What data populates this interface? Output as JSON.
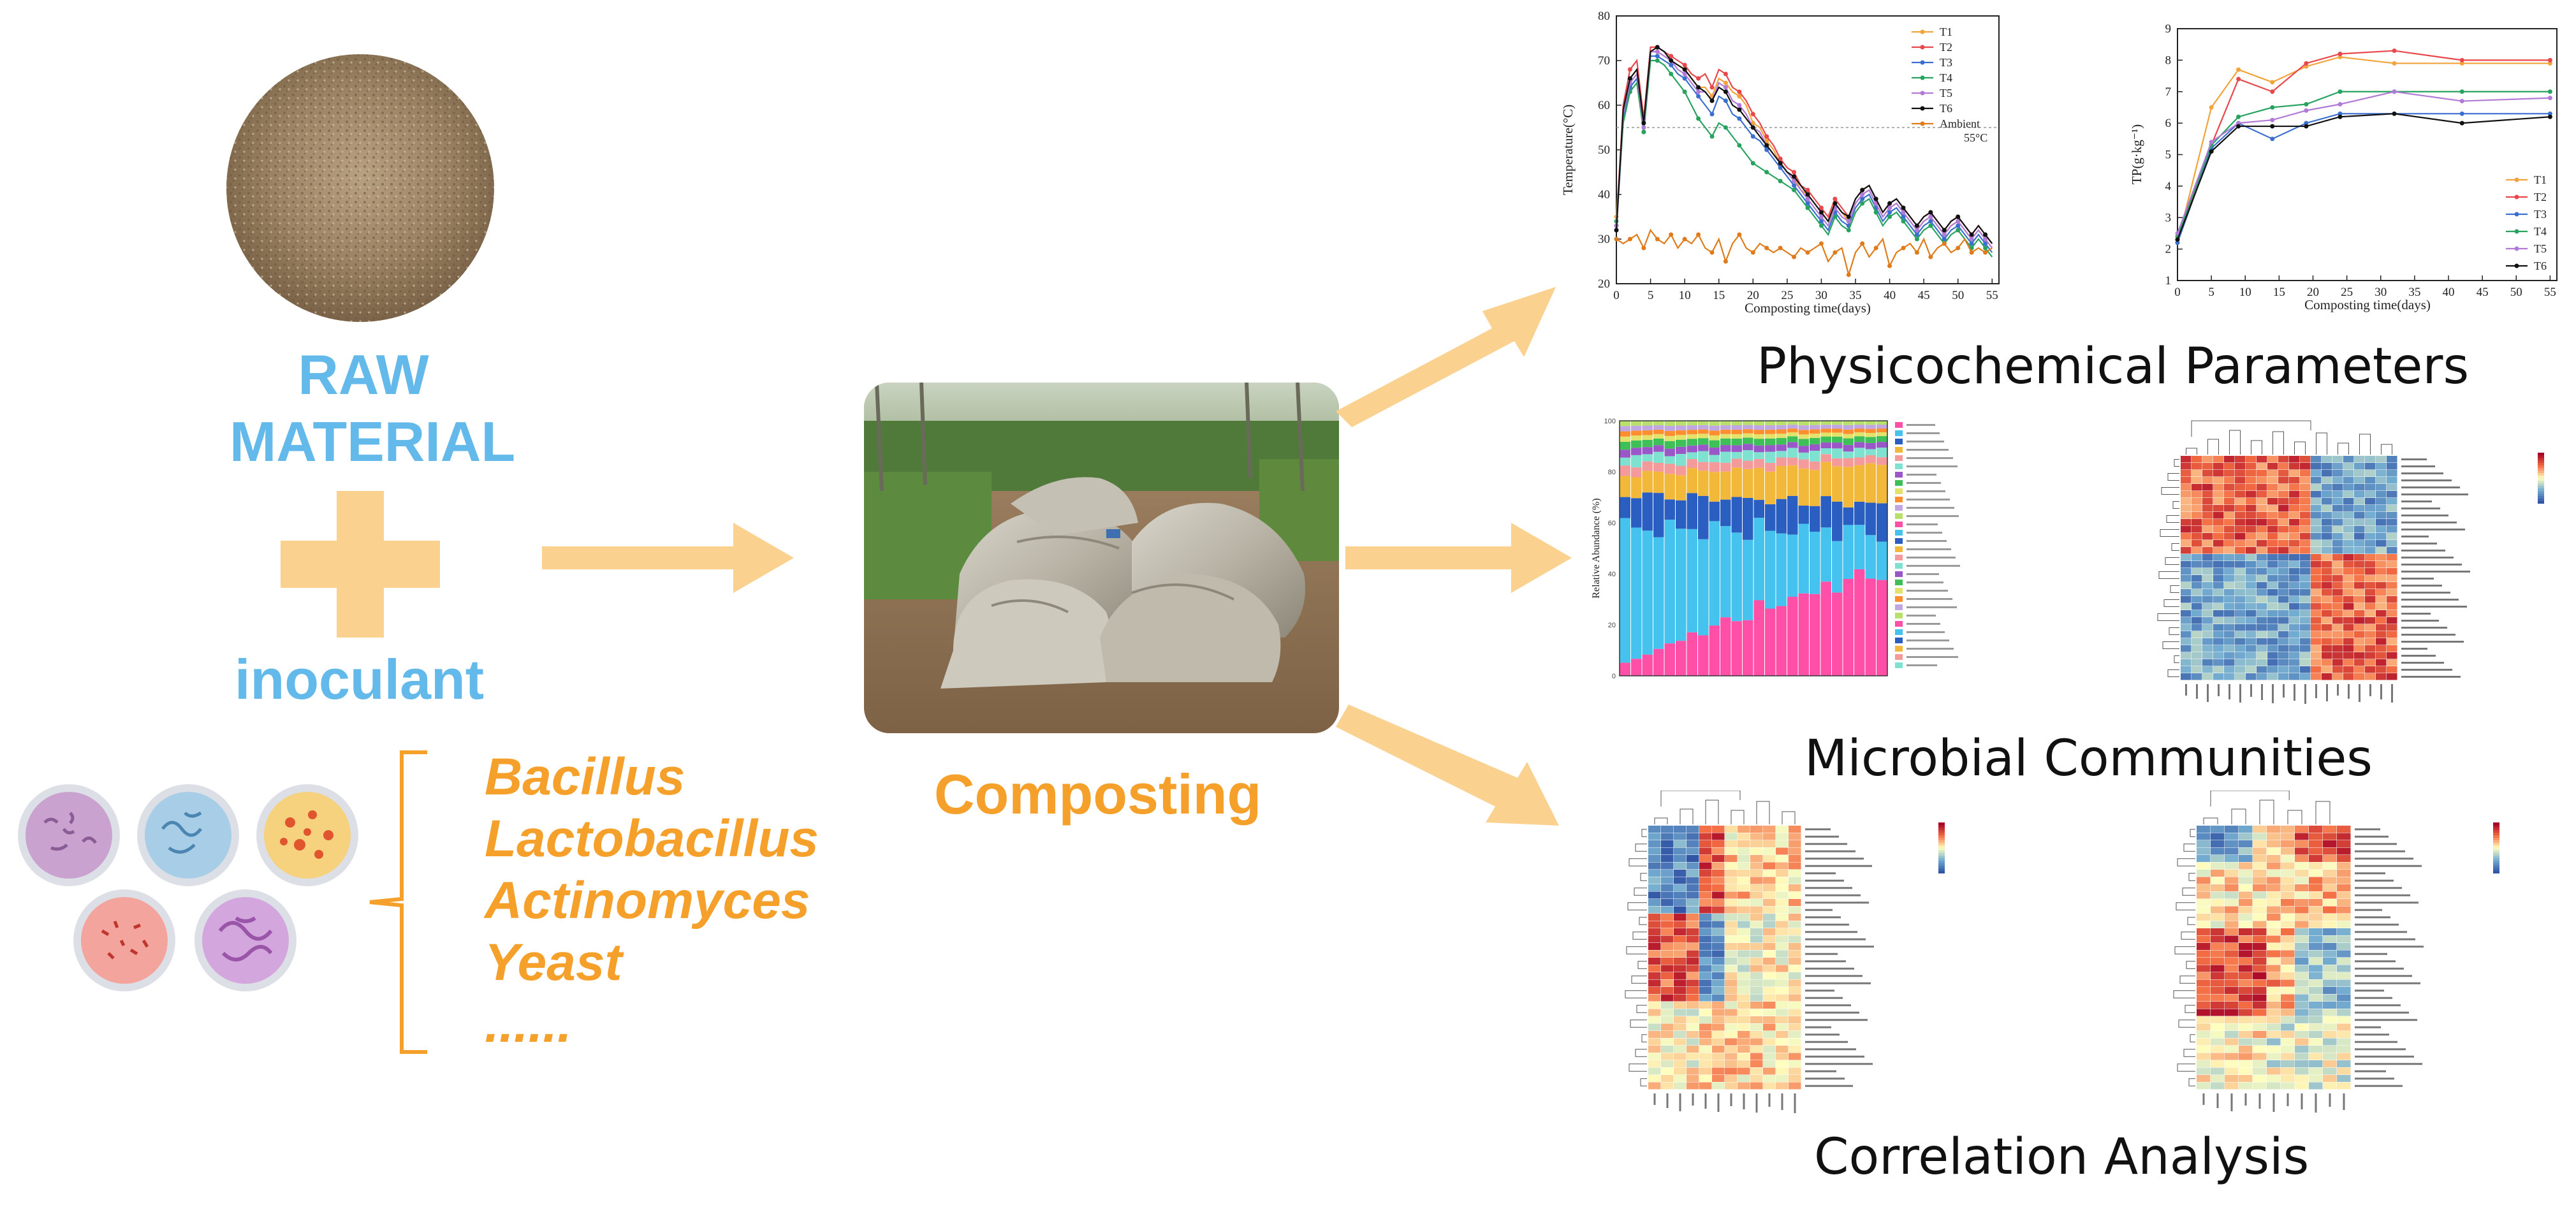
{
  "raw": {
    "line1": "RAW",
    "line2": "MATERIAL"
  },
  "inoculant": {
    "label": "inoculant"
  },
  "organisms": [
    "Bacillus",
    "Lactobacillus",
    "Actinomyces",
    "Yeast",
    "......"
  ],
  "composting": {
    "label": "Composting"
  },
  "sections": {
    "physicochemical": "Physicochemical Parameters",
    "microbial": "Microbial Communities",
    "correlation": "Correlation Analysis"
  },
  "colors": {
    "orange": "#f5a02a",
    "arrow": "#fbd190",
    "blue_text": "#63b9e9"
  },
  "chart_data": [
    {
      "type": "line",
      "ylabel": "Temperature(°C)",
      "xlabel": "Composting time(days)",
      "xlim": [
        0,
        56
      ],
      "ylim": [
        20,
        80
      ],
      "xticks": [
        "0",
        "5",
        "10",
        "15",
        "20",
        "25",
        "30",
        "35",
        "40",
        "45",
        "50",
        "55"
      ],
      "yticks": [
        "20",
        "30",
        "40",
        "50",
        "60",
        "70",
        "80"
      ],
      "annotation": "55°C",
      "reference_y": 55,
      "x": [
        0,
        1,
        2,
        3,
        4,
        5,
        6,
        7,
        8,
        9,
        10,
        11,
        12,
        13,
        14,
        15,
        16,
        17,
        18,
        19,
        20,
        21,
        22,
        23,
        24,
        25,
        26,
        27,
        28,
        29,
        30,
        31,
        32,
        33,
        34,
        35,
        36,
        37,
        38,
        39,
        40,
        41,
        42,
        43,
        44,
        45,
        46,
        47,
        48,
        49,
        50,
        51,
        52,
        53,
        54,
        55
      ],
      "series": [
        {
          "name": "T1",
          "color": "#f2a33a",
          "values": [
            35,
            58,
            66,
            68,
            55,
            72,
            72,
            71,
            70,
            69,
            68,
            66,
            64,
            64,
            62,
            66,
            65,
            63,
            62,
            60,
            56,
            55,
            52,
            50,
            47,
            45,
            44,
            41,
            40,
            38,
            36,
            34,
            38,
            36,
            34,
            38,
            40,
            41,
            38,
            35,
            37,
            38,
            36,
            34,
            32,
            34,
            35,
            33,
            31,
            33,
            34,
            32,
            30,
            32,
            30,
            28
          ]
        },
        {
          "name": "T2",
          "color": "#e8474c",
          "values": [
            33,
            60,
            68,
            70,
            57,
            73,
            73,
            72,
            71,
            70,
            69,
            67,
            66,
            67,
            64,
            68,
            67,
            64,
            63,
            61,
            58,
            56,
            53,
            51,
            48,
            46,
            45,
            42,
            41,
            39,
            37,
            35,
            39,
            37,
            35,
            39,
            41,
            42,
            39,
            36,
            38,
            39,
            37,
            35,
            33,
            35,
            36,
            34,
            32,
            34,
            35,
            33,
            31,
            33,
            31,
            29
          ]
        },
        {
          "name": "T3",
          "color": "#3a6fcf",
          "values": [
            32,
            57,
            64,
            66,
            54,
            71,
            71,
            70,
            69,
            67,
            66,
            64,
            62,
            60,
            58,
            62,
            61,
            58,
            57,
            55,
            53,
            52,
            50,
            48,
            46,
            44,
            42,
            40,
            38,
            36,
            34,
            32,
            36,
            34,
            33,
            37,
            39,
            40,
            37,
            34,
            36,
            37,
            35,
            33,
            31,
            33,
            34,
            32,
            30,
            32,
            33,
            31,
            29,
            31,
            29,
            27
          ]
        },
        {
          "name": "T4",
          "color": "#27a35f",
          "values": [
            34,
            56,
            63,
            65,
            54,
            70,
            70,
            69,
            67,
            65,
            63,
            60,
            57,
            55,
            53,
            56,
            55,
            53,
            51,
            49,
            47,
            46,
            45,
            44,
            43,
            42,
            41,
            39,
            37,
            35,
            33,
            31,
            35,
            33,
            32,
            36,
            38,
            39,
            36,
            33,
            35,
            36,
            34,
            32,
            30,
            32,
            33,
            31,
            29,
            31,
            32,
            30,
            28,
            30,
            28,
            26
          ]
        },
        {
          "name": "T5",
          "color": "#b07ad6",
          "values": [
            33,
            58,
            65,
            67,
            55,
            72,
            72,
            71,
            70,
            68,
            67,
            65,
            63,
            63,
            61,
            65,
            64,
            61,
            60,
            58,
            55,
            54,
            51,
            49,
            47,
            45,
            43,
            41,
            39,
            37,
            35,
            33,
            37,
            35,
            34,
            38,
            40,
            41,
            38,
            35,
            37,
            38,
            36,
            34,
            32,
            34,
            35,
            33,
            31,
            33,
            34,
            32,
            30,
            32,
            30,
            28
          ]
        },
        {
          "name": "T6",
          "color": "#111111",
          "values": [
            32,
            59,
            66,
            68,
            56,
            72,
            73,
            72,
            70,
            69,
            68,
            66,
            64,
            63,
            61,
            64,
            63,
            60,
            59,
            57,
            55,
            53,
            51,
            49,
            47,
            45,
            44,
            42,
            40,
            38,
            36,
            34,
            38,
            36,
            35,
            39,
            41,
            42,
            39,
            36,
            38,
            39,
            37,
            35,
            33,
            35,
            36,
            34,
            32,
            34,
            35,
            33,
            31,
            33,
            31,
            29
          ]
        },
        {
          "name": "Ambient",
          "color": "#e07b1a",
          "values": [
            30,
            29,
            30,
            31,
            28,
            32,
            30,
            29,
            31,
            28,
            30,
            29,
            31,
            28,
            27,
            30,
            25,
            29,
            31,
            28,
            27,
            29,
            28,
            27,
            28,
            27,
            26,
            28,
            27,
            28,
            29,
            25,
            27,
            28,
            22,
            27,
            29,
            26,
            28,
            30,
            24,
            27,
            28,
            29,
            27,
            30,
            26,
            28,
            29,
            27,
            28,
            30,
            27,
            28,
            27,
            28
          ]
        }
      ]
    },
    {
      "type": "line",
      "ylabel": "TP(g·kg⁻¹)",
      "xlabel": "Composting time(days)",
      "xlim": [
        0,
        56
      ],
      "ylim": [
        1,
        9
      ],
      "xticks": [
        "0",
        "5",
        "10",
        "15",
        "20",
        "25",
        "30",
        "35",
        "40",
        "45",
        "50",
        "55"
      ],
      "yticks": [
        "1",
        "2",
        "3",
        "4",
        "5",
        "6",
        "7",
        "8",
        "9"
      ],
      "x": [
        0,
        5,
        9,
        14,
        19,
        24,
        32,
        42,
        55
      ],
      "series": [
        {
          "name": "T1",
          "color": "#f2a33a",
          "values": [
            2.2,
            6.5,
            7.7,
            7.3,
            7.8,
            8.1,
            7.9,
            7.9,
            7.9
          ]
        },
        {
          "name": "T2",
          "color": "#e8474c",
          "values": [
            2.3,
            5.3,
            7.4,
            7.0,
            7.9,
            8.2,
            8.3,
            8.0,
            8.0
          ]
        },
        {
          "name": "T3",
          "color": "#3a6fcf",
          "values": [
            2.2,
            5.2,
            6.0,
            5.5,
            6.0,
            6.3,
            6.3,
            6.3,
            6.3
          ]
        },
        {
          "name": "T4",
          "color": "#27a35f",
          "values": [
            2.4,
            5.3,
            6.2,
            6.5,
            6.6,
            7.0,
            7.0,
            7.0,
            7.0
          ]
        },
        {
          "name": "T5",
          "color": "#b07ad6",
          "values": [
            2.5,
            5.4,
            6.0,
            6.1,
            6.4,
            6.6,
            7.0,
            6.7,
            6.8
          ]
        },
        {
          "name": "T6",
          "color": "#111111",
          "values": [
            2.3,
            5.1,
            5.9,
            5.9,
            5.9,
            6.2,
            6.3,
            6.0,
            6.2
          ]
        }
      ]
    },
    {
      "type": "bar",
      "ylabel": "Relative Abundance (%)",
      "ylim": [
        0,
        100
      ],
      "yticks": [
        "0",
        "20",
        "40",
        "60",
        "80",
        "100"
      ],
      "stacked": true
    },
    {
      "type": "heatmap",
      "xlabel": "",
      "ylabel": ""
    },
    {
      "type": "heatmap",
      "xlabel": "",
      "ylabel": ""
    },
    {
      "type": "heatmap",
      "xlabel": "",
      "ylabel": ""
    }
  ]
}
